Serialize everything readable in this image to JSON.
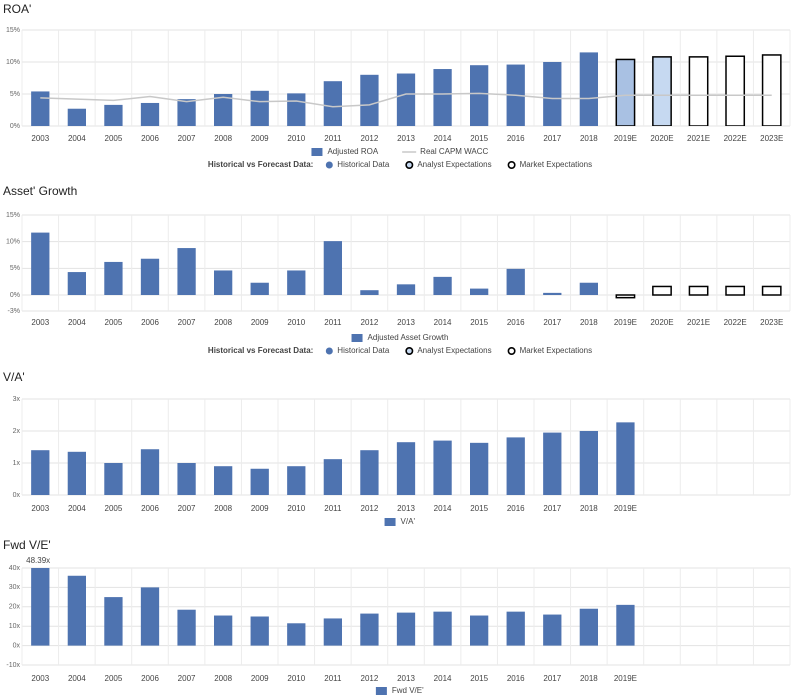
{
  "chart_data": [
    {
      "type": "bar",
      "title": "ROA'",
      "categories": [
        "2003",
        "2004",
        "2005",
        "2006",
        "2007",
        "2008",
        "2009",
        "2010",
        "2011",
        "2012",
        "2013",
        "2014",
        "2015",
        "2016",
        "2017",
        "2018",
        "2019E",
        "2020E",
        "2021E",
        "2022E",
        "2023E"
      ],
      "series": [
        {
          "name": "Adjusted ROA",
          "type": "bar",
          "color": "#4e73b0",
          "values": [
            5.4,
            2.7,
            3.3,
            3.6,
            4.2,
            5.0,
            5.5,
            5.1,
            7.0,
            8.0,
            8.2,
            8.9,
            9.5,
            9.6,
            10.0,
            11.5,
            10.4,
            10.8,
            10.8,
            10.9,
            11.1
          ],
          "colors": [
            "#4e73b0",
            "#4e73b0",
            "#4e73b0",
            "#4e73b0",
            "#4e73b0",
            "#4e73b0",
            "#4e73b0",
            "#4e73b0",
            "#4e73b0",
            "#4e73b0",
            "#4e73b0",
            "#4e73b0",
            "#4e73b0",
            "#4e73b0",
            "#4e73b0",
            "#4e73b0",
            "#a9c1e3",
            "#c6d9f1",
            "#ffffff",
            "#ffffff",
            "#ffffff"
          ],
          "edgecolors": [
            null,
            null,
            null,
            null,
            null,
            null,
            null,
            null,
            null,
            null,
            null,
            null,
            null,
            null,
            null,
            null,
            "#000000",
            "#000000",
            "#000000",
            "#000000",
            "#000000"
          ]
        },
        {
          "name": "Real CAPM WACC",
          "type": "line",
          "color": "#c8c8c8",
          "values": [
            4.4,
            4.2,
            4.0,
            4.6,
            3.8,
            4.5,
            3.8,
            3.9,
            3.0,
            3.3,
            5.0,
            5.0,
            5.1,
            4.8,
            4.3,
            4.3,
            4.8,
            4.8,
            4.8,
            4.8,
            4.8
          ]
        }
      ],
      "ylim": [
        0,
        15
      ],
      "yticks": [
        {
          "value": 0,
          "label": "0%"
        },
        {
          "value": 5,
          "label": "5%"
        },
        {
          "value": 10,
          "label": "10%"
        },
        {
          "value": 15,
          "label": "15%"
        }
      ],
      "grid": true,
      "forecast_legend": {
        "title": "Historical vs Forecast Data:",
        "items": [
          "Historical Data",
          "Analyst Expectations",
          "Market Expectations"
        ]
      }
    },
    {
      "type": "bar",
      "title": "Asset' Growth",
      "categories": [
        "2003",
        "2004",
        "2005",
        "2006",
        "2007",
        "2008",
        "2009",
        "2010",
        "2011",
        "2012",
        "2013",
        "2014",
        "2015",
        "2016",
        "2017",
        "2018",
        "2019E",
        "2020E",
        "2021E",
        "2022E",
        "2023E"
      ],
      "series": [
        {
          "name": "Adjusted Asset Growth",
          "type": "bar",
          "color": "#4e73b0",
          "values": [
            11.7,
            4.3,
            6.2,
            6.8,
            8.8,
            4.6,
            2.3,
            4.6,
            10.1,
            0.9,
            2.0,
            3.4,
            1.2,
            4.9,
            0.4,
            2.3,
            -0.5,
            1.6,
            1.6,
            1.6,
            1.6
          ],
          "colors": [
            "#4e73b0",
            "#4e73b0",
            "#4e73b0",
            "#4e73b0",
            "#4e73b0",
            "#4e73b0",
            "#4e73b0",
            "#4e73b0",
            "#4e73b0",
            "#4e73b0",
            "#4e73b0",
            "#4e73b0",
            "#4e73b0",
            "#4e73b0",
            "#4e73b0",
            "#4e73b0",
            "#ffffff",
            "#ffffff",
            "#ffffff",
            "#ffffff",
            "#ffffff"
          ],
          "edgecolors": [
            null,
            null,
            null,
            null,
            null,
            null,
            null,
            null,
            null,
            null,
            null,
            null,
            null,
            null,
            null,
            null,
            "#000000",
            "#000000",
            "#000000",
            "#000000",
            "#000000"
          ]
        }
      ],
      "ylim": [
        -3,
        15
      ],
      "yticks": [
        {
          "value": -3,
          "label": "-3%"
        },
        {
          "value": 0,
          "label": "0%"
        },
        {
          "value": 5,
          "label": "5%"
        },
        {
          "value": 10,
          "label": "10%"
        },
        {
          "value": 15,
          "label": "15%"
        }
      ],
      "grid": true,
      "forecast_legend": {
        "title": "Historical vs Forecast Data:",
        "items": [
          "Historical Data",
          "Analyst Expectations",
          "Market Expectations"
        ]
      }
    },
    {
      "type": "bar",
      "title": "V/A'",
      "categories": [
        "2003",
        "2004",
        "2005",
        "2006",
        "2007",
        "2008",
        "2009",
        "2010",
        "2011",
        "2012",
        "2013",
        "2014",
        "2015",
        "2016",
        "2017",
        "2018",
        "2019E",
        null,
        null,
        null,
        null
      ],
      "series": [
        {
          "name": "V/A'",
          "type": "bar",
          "color": "#4e73b0",
          "values": [
            1.4,
            1.35,
            1.0,
            1.43,
            1.0,
            0.9,
            0.82,
            0.9,
            1.12,
            1.4,
            1.65,
            1.7,
            1.63,
            1.8,
            1.95,
            2.0,
            2.27,
            null,
            null,
            null,
            null
          ]
        }
      ],
      "ylim": [
        0,
        3
      ],
      "yticks": [
        {
          "value": 0,
          "label": "0x"
        },
        {
          "value": 1,
          "label": "1x"
        },
        {
          "value": 2,
          "label": "2x"
        },
        {
          "value": 3,
          "label": "3x"
        }
      ],
      "grid": true
    },
    {
      "type": "bar",
      "title": "Fwd V/E'",
      "categories": [
        "2003",
        "2004",
        "2005",
        "2006",
        "2007",
        "2008",
        "2009",
        "2010",
        "2011",
        "2012",
        "2013",
        "2014",
        "2015",
        "2016",
        "2017",
        "2018",
        "2019E",
        null,
        null,
        null,
        null
      ],
      "series": [
        {
          "name": "Fwd V/E'",
          "type": "bar",
          "color": "#4e73b0",
          "values": [
            48.39,
            36,
            25,
            30,
            18.5,
            15.5,
            15,
            11.5,
            14,
            16.5,
            17,
            17.5,
            15.5,
            17.5,
            16,
            19,
            21,
            null,
            null,
            null,
            null
          ],
          "value_labels": [
            "48.39x",
            null,
            null,
            null,
            null,
            null,
            null,
            null,
            null,
            null,
            null,
            null,
            null,
            null,
            null,
            null,
            null,
            null,
            null,
            null,
            null
          ]
        }
      ],
      "ylim": [
        -10,
        40
      ],
      "yticks": [
        {
          "value": -10,
          "label": "-10x"
        },
        {
          "value": 0,
          "label": "0x"
        },
        {
          "value": 10,
          "label": "10x"
        },
        {
          "value": 20,
          "label": "20x"
        },
        {
          "value": 30,
          "label": "30x"
        },
        {
          "value": 40,
          "label": "40x"
        }
      ],
      "grid": true
    }
  ]
}
